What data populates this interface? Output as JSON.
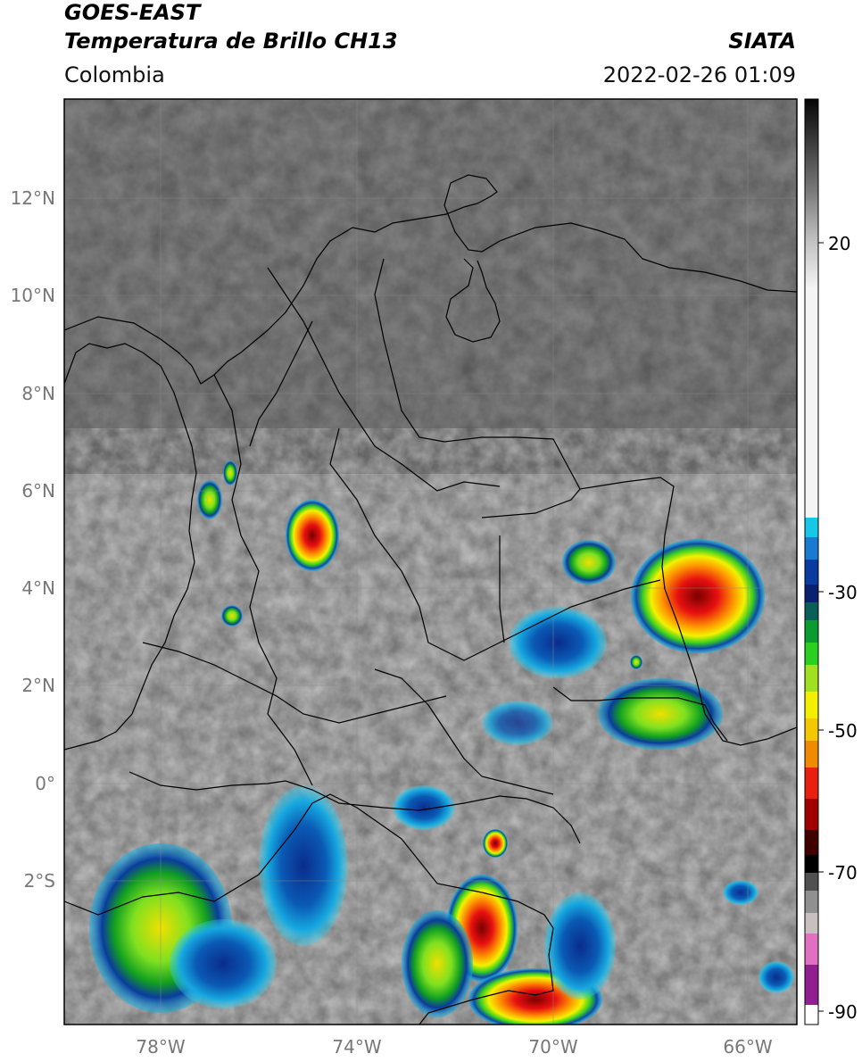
{
  "header": {
    "satellite": "GOES-EAST",
    "product": "Temperatura de Brillo CH13",
    "brand": "SIATA",
    "region": "Colombia",
    "datetime": "2022-02-26 01:09"
  },
  "axes": {
    "lat_labels": [
      "12°N",
      "10°N",
      "8°N",
      "6°N",
      "4°N",
      "2°N",
      "0°",
      "2°S"
    ],
    "lon_labels": [
      "78°W",
      "74°W",
      "70°W",
      "66°W"
    ]
  },
  "colorbar": {
    "ticks": [
      "20",
      "-30",
      "-50",
      "-70",
      "-90"
    ],
    "colors": [
      "#0a0a0a",
      "#3c3c3c",
      "#6e6e6e",
      "#a0a0a0",
      "#d0d0d0",
      "#f0f0f0",
      "#00c8f0",
      "#0070c8",
      "#002a8c",
      "#006060",
      "#00a020",
      "#80e000",
      "#f0f000",
      "#f0a000",
      "#e02000",
      "#900000",
      "#200000",
      "#606060",
      "#b0b0b0",
      "#e080c0",
      "#800080",
      "#ffffff"
    ]
  },
  "colors": {
    "cloud_cold": "#d41414",
    "cloud_mid": "#ffea00",
    "cloud_green": "#2ecc20",
    "cloud_blue": "#0a3c9c",
    "cloud_cyan": "#16b4e4"
  }
}
